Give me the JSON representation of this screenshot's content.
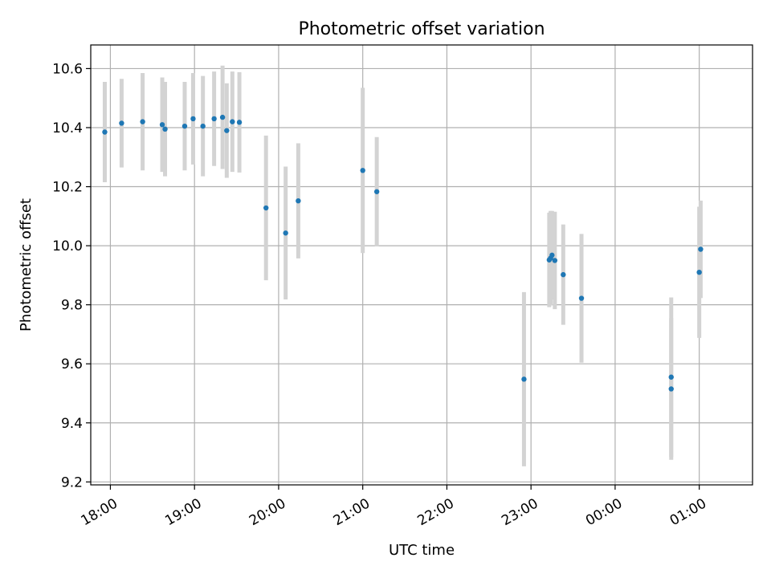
{
  "chart_data": {
    "type": "scatter",
    "title": "Photometric offset variation",
    "xlabel": "UTC time",
    "ylabel": "Photometric offset",
    "ylim": [
      9.19,
      10.68
    ],
    "xlim": [
      "17:46",
      "01:38"
    ],
    "grid": true,
    "point_color": "#1f77b4",
    "errorbar_color": "#d3d3d3",
    "x_ticks": [
      "18:00",
      "19:00",
      "20:00",
      "21:00",
      "22:00",
      "23:00",
      "00:00",
      "01:00"
    ],
    "y_ticks": [
      9.2,
      9.4,
      9.6,
      9.8,
      10.0,
      10.2,
      10.4,
      10.6
    ],
    "points": [
      {
        "x": "17:56",
        "y": 10.385,
        "err": 0.17
      },
      {
        "x": "18:08",
        "y": 10.415,
        "err": 0.15
      },
      {
        "x": "18:23",
        "y": 10.42,
        "err": 0.165
      },
      {
        "x": "18:37",
        "y": 10.41,
        "err": 0.16
      },
      {
        "x": "18:39",
        "y": 10.395,
        "err": 0.16
      },
      {
        "x": "18:53",
        "y": 10.405,
        "err": 0.15
      },
      {
        "x": "18:59",
        "y": 10.43,
        "err": 0.155
      },
      {
        "x": "19:06",
        "y": 10.405,
        "err": 0.17
      },
      {
        "x": "19:14",
        "y": 10.43,
        "err": 0.16
      },
      {
        "x": "19:20",
        "y": 10.435,
        "err": 0.175
      },
      {
        "x": "19:23",
        "y": 10.39,
        "err": 0.16
      },
      {
        "x": "19:27",
        "y": 10.42,
        "err": 0.17
      },
      {
        "x": "19:32",
        "y": 10.418,
        "err": 0.17
      },
      {
        "x": "19:51",
        "y": 10.128,
        "err": 0.245
      },
      {
        "x": "20:05",
        "y": 10.043,
        "err": 0.225
      },
      {
        "x": "20:14",
        "y": 10.152,
        "err": 0.195
      },
      {
        "x": "21:00",
        "y": 10.255,
        "err": 0.28
      },
      {
        "x": "21:10",
        "y": 10.183,
        "err": 0.185
      },
      {
        "x": "22:55",
        "y": 9.548,
        "err": 0.295
      },
      {
        "x": "23:13",
        "y": 9.952,
        "err": 0.16
      },
      {
        "x": "23:14",
        "y": 9.958,
        "err": 0.16
      },
      {
        "x": "23:15",
        "y": 9.968,
        "err": 0.15
      },
      {
        "x": "23:17",
        "y": 9.95,
        "err": 0.165
      },
      {
        "x": "23:23",
        "y": 9.902,
        "err": 0.17
      },
      {
        "x": "23:36",
        "y": 9.822,
        "err": 0.218
      },
      {
        "x": "00:40",
        "y": 9.555,
        "err": 0.27
      },
      {
        "x": "00:40",
        "y": 9.515,
        "err": 0.24
      },
      {
        "x": "01:00",
        "y": 9.91,
        "err": 0.222
      },
      {
        "x": "01:01",
        "y": 9.988,
        "err": 0.165
      }
    ]
  }
}
